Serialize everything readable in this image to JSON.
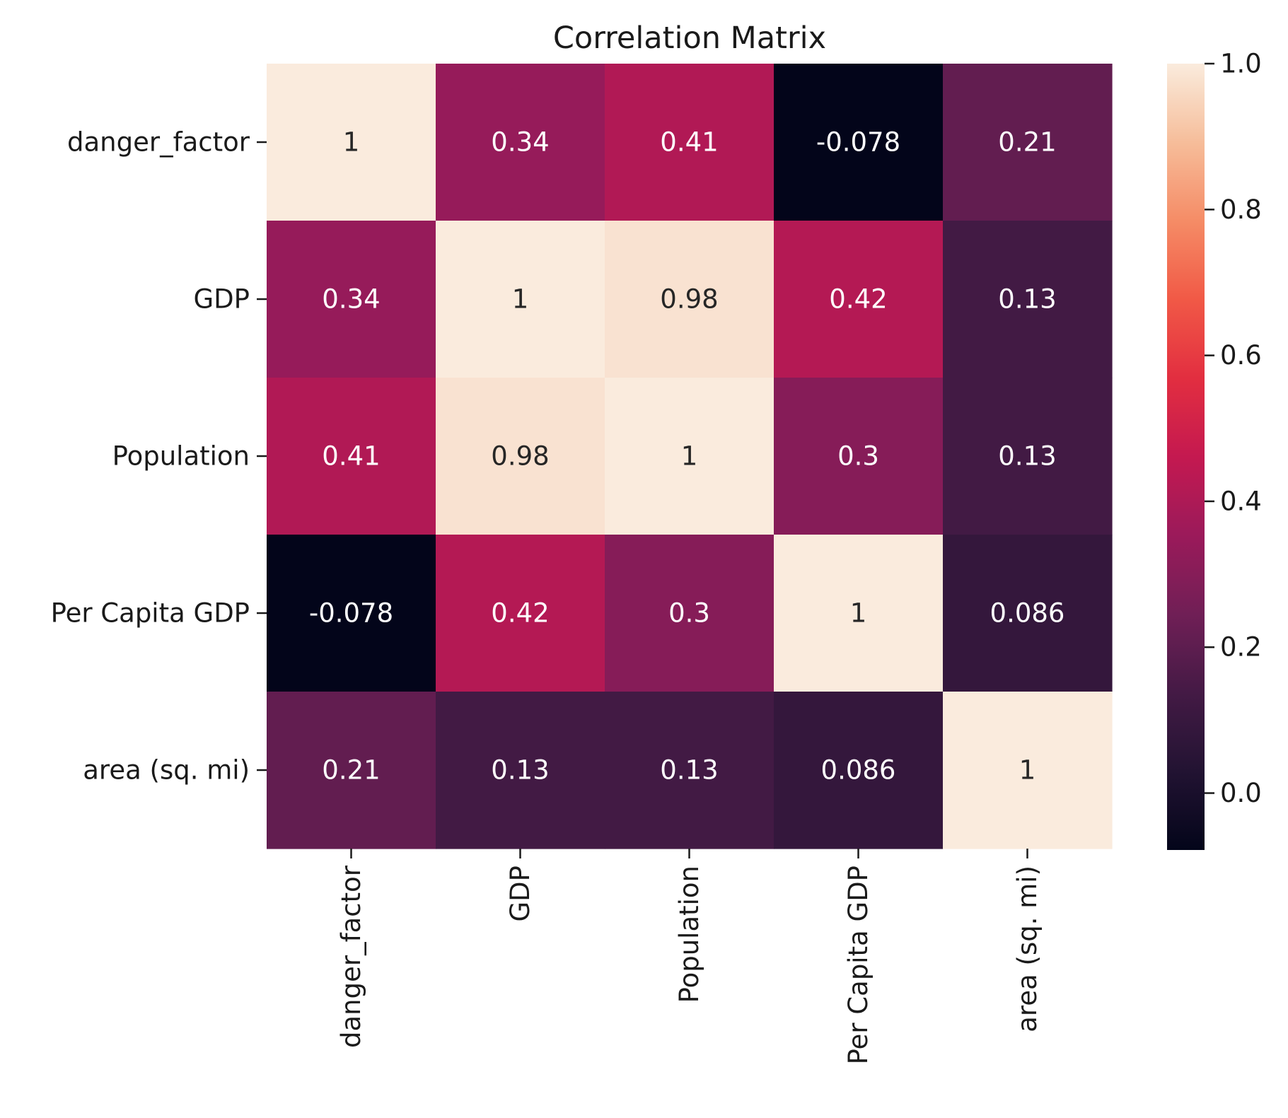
{
  "chart_data": {
    "type": "heatmap",
    "title": "Correlation Matrix",
    "row_labels": [
      "danger_factor",
      "GDP",
      "Population",
      "Per Capita GDP",
      "area (sq. mi)"
    ],
    "col_labels": [
      "danger_factor",
      "GDP",
      "Population",
      "Per Capita GDP",
      "area (sq. mi)"
    ],
    "values": [
      [
        1.0,
        0.34,
        0.41,
        -0.078,
        0.21
      ],
      [
        0.34,
        1.0,
        0.98,
        0.42,
        0.13
      ],
      [
        0.41,
        0.98,
        1.0,
        0.3,
        0.13
      ],
      [
        -0.078,
        0.42,
        0.3,
        1.0,
        0.086
      ],
      [
        0.21,
        0.13,
        0.13,
        0.086,
        1.0
      ]
    ],
    "annotations": [
      [
        "1",
        "0.34",
        "0.41",
        "-0.078",
        "0.21"
      ],
      [
        "0.34",
        "1",
        "0.98",
        "0.42",
        "0.13"
      ],
      [
        "0.41",
        "0.98",
        "1",
        "0.3",
        "0.13"
      ],
      [
        "-0.078",
        "0.42",
        "0.3",
        "1",
        "0.086"
      ],
      [
        "0.21",
        "0.13",
        "0.13",
        "0.086",
        "1"
      ]
    ],
    "colorbar": {
      "colormap": "rocket",
      "vmin": -0.078,
      "vmax": 1.0,
      "ticks": [
        0.0,
        0.2,
        0.4,
        0.6,
        0.8,
        1.0
      ],
      "tick_labels": [
        "0.0",
        "0.2",
        "0.4",
        "0.6",
        "0.8",
        "1.0"
      ]
    },
    "xlabel": "",
    "ylabel": "",
    "grid": false,
    "legend": "colorbar-right"
  }
}
